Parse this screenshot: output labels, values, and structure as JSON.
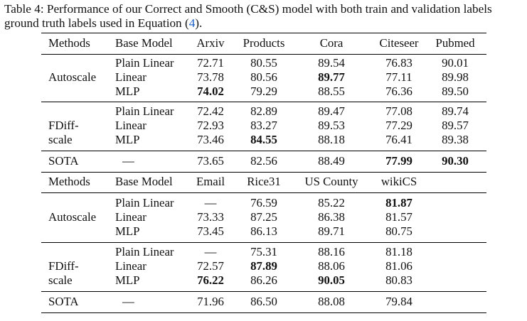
{
  "caption": {
    "line1": "Table 4: Performance of our Correct and Smooth (C&S) model with both train and validation labels",
    "line2_pre": "ground truth labels used in Equation (",
    "line2_ref": "4",
    "line2_post": ")."
  },
  "table1": {
    "headers": [
      "Methods",
      "Base Model",
      "Arxiv",
      "Products",
      "Cora",
      "Citeseer",
      "Pubmed"
    ],
    "groups": [
      {
        "method": [
          "Autoscale"
        ],
        "rows": [
          {
            "model": "Plain Linear",
            "values": [
              "72.71",
              "80.55",
              "89.54",
              "76.83",
              "90.01"
            ],
            "bold": [
              false,
              false,
              false,
              false,
              false
            ]
          },
          {
            "model": "Linear",
            "values": [
              "73.78",
              "80.56",
              "89.77",
              "77.11",
              "89.98"
            ],
            "bold": [
              false,
              false,
              true,
              false,
              false
            ]
          },
          {
            "model": "MLP",
            "values": [
              "74.02",
              "79.29",
              "88.55",
              "76.36",
              "89.50"
            ],
            "bold": [
              true,
              false,
              false,
              false,
              false
            ]
          }
        ]
      },
      {
        "method": [
          "FDiff-",
          "scale"
        ],
        "rows": [
          {
            "model": "Plain Linear",
            "values": [
              "72.42",
              "82.89",
              "89.47",
              "77.08",
              "89.74"
            ],
            "bold": [
              false,
              false,
              false,
              false,
              false
            ]
          },
          {
            "model": "Linear",
            "values": [
              "72.93",
              "83.27",
              "89.53",
              "77.29",
              "89.57"
            ],
            "bold": [
              false,
              false,
              false,
              false,
              false
            ]
          },
          {
            "model": "MLP",
            "values": [
              "73.46",
              "84.55",
              "88.18",
              "76.41",
              "89.38"
            ],
            "bold": [
              false,
              true,
              false,
              false,
              false
            ]
          }
        ]
      },
      {
        "method": [
          "SOTA"
        ],
        "rows": [
          {
            "model": "—",
            "values": [
              "73.65",
              "82.56",
              "88.49",
              "77.99",
              "90.30"
            ],
            "bold": [
              false,
              false,
              false,
              true,
              true
            ]
          }
        ]
      }
    ]
  },
  "table2": {
    "headers": [
      "Methods",
      "Base Model",
      "Email",
      "Rice31",
      "US County",
      "wikiCS"
    ],
    "groups": [
      {
        "method": [
          "Autoscale"
        ],
        "rows": [
          {
            "model": "Plain Linear",
            "values": [
              "—",
              "76.59",
              "85.22",
              "81.87"
            ],
            "bold": [
              false,
              false,
              false,
              true
            ]
          },
          {
            "model": "Linear",
            "values": [
              "73.33",
              "87.25",
              "86.38",
              "81.57"
            ],
            "bold": [
              false,
              false,
              false,
              false
            ]
          },
          {
            "model": "MLP",
            "values": [
              "73.45",
              "86.13",
              "89.71",
              "80.75"
            ],
            "bold": [
              false,
              false,
              false,
              false
            ]
          }
        ]
      },
      {
        "method": [
          "FDiff-",
          "scale"
        ],
        "rows": [
          {
            "model": "Plain Linear",
            "values": [
              "—",
              "75.31",
              "88.16",
              "81.18"
            ],
            "bold": [
              false,
              false,
              false,
              false
            ]
          },
          {
            "model": "Linear",
            "values": [
              "72.57",
              "87.89",
              "88.06",
              "81.06"
            ],
            "bold": [
              false,
              true,
              false,
              false
            ]
          },
          {
            "model": "MLP",
            "values": [
              "76.22",
              "86.26",
              "90.05",
              "80.83"
            ],
            "bold": [
              true,
              false,
              true,
              false
            ]
          }
        ]
      },
      {
        "method": [
          "SOTA"
        ],
        "rows": [
          {
            "model": "—",
            "values": [
              "71.96",
              "86.50",
              "88.08",
              "79.84"
            ],
            "bold": [
              false,
              false,
              false,
              false
            ]
          }
        ]
      }
    ]
  }
}
